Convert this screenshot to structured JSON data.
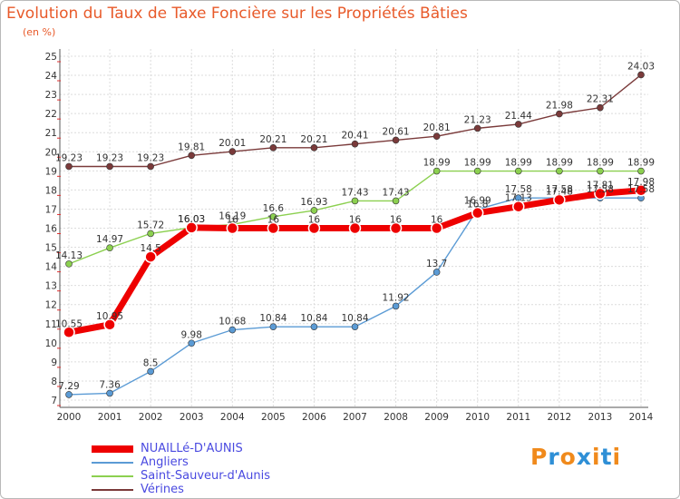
{
  "title": "Evolution du Taux de Taxe Foncière sur les Propriétés Bâties",
  "unit_label": "(en %)",
  "logo": "Proxiti",
  "chart_data": {
    "type": "line",
    "title": "Evolution du Taux de Taxe Foncière sur les Propriétés Bâties",
    "ylabel": "(en %)",
    "xlabel": "",
    "x": [
      2000,
      2001,
      2002,
      2003,
      2004,
      2005,
      2006,
      2007,
      2008,
      2009,
      2010,
      2011,
      2012,
      2013,
      2014
    ],
    "ylim": [
      7,
      25
    ],
    "yticks": [
      7,
      8,
      9,
      10,
      11,
      12,
      13,
      14,
      15,
      16,
      17,
      18,
      19,
      20,
      21,
      22,
      23,
      24,
      25
    ],
    "legend_position": "bottom-left",
    "series": [
      {
        "name": "NUAILLé-D'AUNIS",
        "color": "#ee0000",
        "values": [
          10.55,
          10.95,
          14.5,
          16.03,
          16,
          16,
          16,
          16,
          16,
          16,
          16.8,
          17.13,
          17.48,
          17.81,
          17.98
        ],
        "labels": [
          "10.55",
          "10.95",
          "14.5",
          "16.03",
          "16",
          "16",
          "16",
          "16",
          "16",
          "16",
          "16.8",
          "17.13",
          "17.48",
          "17.81",
          "17.98"
        ]
      },
      {
        "name": "Angliers",
        "color": "#5b9bd5",
        "values": [
          7.29,
          7.36,
          8.5,
          9.98,
          10.68,
          10.84,
          10.84,
          10.84,
          11.92,
          13.7,
          16.99,
          17.58,
          17.58,
          17.58,
          17.58
        ],
        "labels": [
          "7.29",
          "7.36",
          "8.5",
          "9.98",
          "10.68",
          "10.84",
          "10.84",
          "10.84",
          "11.92",
          "13.7",
          "16.99",
          "17.58",
          "17.58",
          "17.58",
          "17.58"
        ]
      },
      {
        "name": "Saint-Sauveur-d'Aunis",
        "color": "#8cd050",
        "values": [
          14.13,
          14.97,
          15.72,
          16.03,
          16.19,
          16.6,
          16.93,
          17.43,
          17.43,
          18.99,
          18.99,
          18.99,
          18.99,
          18.99,
          18.99
        ],
        "labels": [
          "14.13",
          "14.97",
          "15.72",
          "16.03",
          "16.19",
          "16.6",
          "16.93",
          "17.43",
          "17.43",
          "18.99",
          "18.99",
          "18.99",
          "18.99",
          "18.99",
          "18.99"
        ]
      },
      {
        "name": "Vérines",
        "color": "#7a3a3a",
        "values": [
          19.23,
          19.23,
          19.23,
          19.81,
          20.01,
          20.21,
          20.21,
          20.41,
          20.61,
          20.81,
          21.23,
          21.44,
          21.98,
          22.31,
          24.03
        ],
        "labels": [
          "19.23",
          "19.23",
          "19.23",
          "19.81",
          "20.01",
          "20.21",
          "20.21",
          "20.41",
          "20.61",
          "20.81",
          "21.23",
          "21.44",
          "21.98",
          "22.31",
          "24.03"
        ]
      }
    ]
  }
}
